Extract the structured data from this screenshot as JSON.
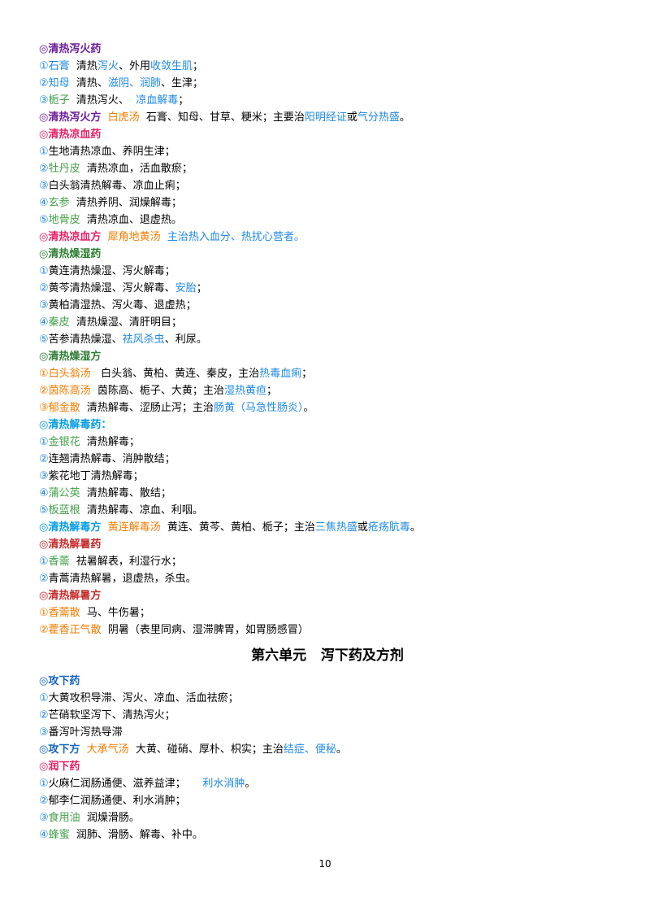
{
  "lines": [
    {
      "kind": "h",
      "segs": [
        {
          "t": "◎清热泻火药",
          "c": "#6a1b9a",
          "b": 1
        }
      ]
    },
    {
      "segs": [
        {
          "t": "①",
          "c": "#1e88e5"
        },
        {
          "t": "石膏",
          "c": "#1e88e5"
        },
        {
          "t": "  清热"
        },
        {
          "t": "泻火",
          "c": "#1e88e5"
        },
        {
          "t": "、外用"
        },
        {
          "t": "收敛生肌",
          "c": "#1e88e5"
        },
        {
          "t": "；"
        }
      ]
    },
    {
      "segs": [
        {
          "t": "②",
          "c": "#1e88e5"
        },
        {
          "t": "知母",
          "c": "#1e88e5"
        },
        {
          "t": "  清热、"
        },
        {
          "t": "滋阴、润肺",
          "c": "#1e88e5"
        },
        {
          "t": "、生津；"
        }
      ]
    },
    {
      "segs": [
        {
          "t": "③",
          "c": "#1e88e5"
        },
        {
          "t": "栀子",
          "c": "#43a047"
        },
        {
          "t": "  清热泻火、  "
        },
        {
          "t": "凉血解毒",
          "c": "#1e88e5"
        },
        {
          "t": "；"
        }
      ]
    },
    {
      "segs": [
        {
          "t": "◎清热泻火方",
          "c": "#6a1b9a",
          "b": 1
        },
        {
          "t": "  白虎汤",
          "c": "#f57c00"
        },
        {
          "t": "  石膏、知母、甘草、粳米；主要治"
        },
        {
          "t": "阳明经证",
          "c": "#1e88e5"
        },
        {
          "t": "或"
        },
        {
          "t": "气分热盛",
          "c": "#1e88e5"
        },
        {
          "t": "。"
        }
      ]
    },
    {
      "kind": "h",
      "segs": [
        {
          "t": "◎清热凉血药",
          "c": "#e91e63",
          "b": 1
        }
      ]
    },
    {
      "segs": [
        {
          "t": "①",
          "c": "#1e88e5"
        },
        {
          "t": "生地清热凉血、养阴生津；"
        }
      ]
    },
    {
      "segs": [
        {
          "t": "②",
          "c": "#1e88e5"
        },
        {
          "t": "牡丹皮",
          "c": "#43a047"
        },
        {
          "t": "  清热凉血，活血散瘀；"
        }
      ]
    },
    {
      "segs": [
        {
          "t": "③",
          "c": "#1e88e5"
        },
        {
          "t": "白头翁清热解毒、凉血止痢；"
        }
      ]
    },
    {
      "segs": [
        {
          "t": "④",
          "c": "#1e88e5"
        },
        {
          "t": "玄参",
          "c": "#43a047"
        },
        {
          "t": "  清热养阴、润燥解毒；"
        }
      ]
    },
    {
      "segs": [
        {
          "t": "⑤",
          "c": "#1e88e5"
        },
        {
          "t": "地骨皮",
          "c": "#43a047"
        },
        {
          "t": "  清热凉血、退虚热。"
        }
      ]
    },
    {
      "segs": [
        {
          "t": "◎清热凉血方",
          "c": "#e91e63",
          "b": 1
        },
        {
          "t": "  犀角地黄汤",
          "c": "#f57c00"
        },
        {
          "t": "  主治热入血分、热扰心营者。",
          "c": "#1e88e5"
        }
      ]
    },
    {
      "kind": "h",
      "segs": [
        {
          "t": "◎清热燥湿药",
          "c": "#2e7d32",
          "b": 1
        }
      ]
    },
    {
      "segs": [
        {
          "t": "①",
          "c": "#1e88e5"
        },
        {
          "t": "黄连清热燥湿、泻火解毒；"
        }
      ]
    },
    {
      "segs": [
        {
          "t": "②",
          "c": "#1e88e5"
        },
        {
          "t": "黄芩清热燥湿、泻火解毒、"
        },
        {
          "t": "安胎",
          "c": "#1e88e5"
        },
        {
          "t": "；"
        }
      ]
    },
    {
      "segs": [
        {
          "t": "③",
          "c": "#1e88e5"
        },
        {
          "t": "黄柏清湿热、泻火毒、退虚热；"
        }
      ]
    },
    {
      "segs": [
        {
          "t": "④",
          "c": "#1e88e5"
        },
        {
          "t": "秦皮",
          "c": "#43a047"
        },
        {
          "t": "  清热燥湿、清肝明目；"
        }
      ]
    },
    {
      "segs": [
        {
          "t": "⑤",
          "c": "#1e88e5"
        },
        {
          "t": "苦参清热燥湿、"
        },
        {
          "t": "祛风杀虫",
          "c": "#1e88e5"
        },
        {
          "t": "、利尿。"
        }
      ]
    },
    {
      "kind": "h",
      "segs": [
        {
          "t": "◎清热燥湿方",
          "c": "#2e7d32",
          "b": 1
        }
      ]
    },
    {
      "segs": [
        {
          "t": "①",
          "c": "#f57c00"
        },
        {
          "t": "白头翁汤",
          "c": "#f57c00"
        },
        {
          "t": "   白头翁、黄柏、黄连、秦皮，主治"
        },
        {
          "t": "热毒血痢",
          "c": "#1e88e5"
        },
        {
          "t": "；"
        }
      ]
    },
    {
      "segs": [
        {
          "t": "②",
          "c": "#f57c00"
        },
        {
          "t": "茵陈高汤",
          "c": "#f57c00"
        },
        {
          "t": "  茵陈高、栀子、大黄；主治"
        },
        {
          "t": "湿热黄疸",
          "c": "#1e88e5"
        },
        {
          "t": "；"
        }
      ]
    },
    {
      "segs": [
        {
          "t": "③",
          "c": "#f57c00"
        },
        {
          "t": "郁金散",
          "c": "#f57c00"
        },
        {
          "t": "  清热解毒、涩肠止泻；主治"
        },
        {
          "t": "肠黄（马急性肠炎）",
          "c": "#1e88e5"
        },
        {
          "t": "。"
        }
      ]
    },
    {
      "kind": "h",
      "segs": [
        {
          "t": "◎清热解毒药：",
          "c": "#039be5",
          "b": 1
        }
      ]
    },
    {
      "segs": [
        {
          "t": "①",
          "c": "#1e88e5"
        },
        {
          "t": "金银花",
          "c": "#43a047"
        },
        {
          "t": "  清热解毒；"
        }
      ]
    },
    {
      "segs": [
        {
          "t": "②",
          "c": "#1e88e5"
        },
        {
          "t": "连翘清热解毒、消肿散结；"
        }
      ]
    },
    {
      "segs": [
        {
          "t": "③",
          "c": "#1e88e5"
        },
        {
          "t": "紫花地丁清热解毒；"
        }
      ]
    },
    {
      "segs": [
        {
          "t": "④",
          "c": "#1e88e5"
        },
        {
          "t": "蒲公英",
          "c": "#43a047"
        },
        {
          "t": "  清热解毒、散结；"
        }
      ]
    },
    {
      "segs": [
        {
          "t": "⑤",
          "c": "#1e88e5"
        },
        {
          "t": "板蓝根",
          "c": "#43a047"
        },
        {
          "t": "  清热解毒、凉血、利咽。"
        }
      ]
    },
    {
      "segs": [
        {
          "t": "◎清热解毒方",
          "c": "#039be5",
          "b": 1
        },
        {
          "t": "  黄连解毒汤",
          "c": "#f57c00"
        },
        {
          "t": "  黄连、黄芩、黄柏、栀子；主治"
        },
        {
          "t": "三焦热盛",
          "c": "#1e88e5"
        },
        {
          "t": "或"
        },
        {
          "t": "疮疡肮毒",
          "c": "#1e88e5"
        },
        {
          "t": "。"
        }
      ]
    },
    {
      "kind": "h",
      "segs": [
        {
          "t": "◎清热解暑药",
          "c": "#c62828",
          "b": 1
        }
      ]
    },
    {
      "segs": [
        {
          "t": "①",
          "c": "#1e88e5"
        },
        {
          "t": "香薷",
          "c": "#43a047"
        },
        {
          "t": "  祛暑解表，利湿行水；"
        }
      ]
    },
    {
      "segs": [
        {
          "t": "②",
          "c": "#1e88e5"
        },
        {
          "t": "青蒿清热解暑，退虚热，杀虫。"
        }
      ]
    },
    {
      "kind": "h",
      "segs": [
        {
          "t": "◎清热解暑方",
          "c": "#c62828",
          "b": 1
        }
      ]
    },
    {
      "segs": [
        {
          "t": "①",
          "c": "#f57c00"
        },
        {
          "t": "香薷散",
          "c": "#f57c00"
        },
        {
          "t": "  马、牛伤暑；"
        }
      ]
    },
    {
      "segs": [
        {
          "t": "②",
          "c": "#f57c00"
        },
        {
          "t": "藿香正气散",
          "c": "#f57c00"
        },
        {
          "t": "  阴暑（表里同病、湿滞脾胃，如胃肠感冒）"
        }
      ]
    },
    {
      "kind": "chapter",
      "segs": [
        {
          "t": "第六单元   泻下药及方剂"
        }
      ]
    },
    {
      "kind": "h",
      "segs": [
        {
          "t": "◎攻下药",
          "c": "#1565c0",
          "b": 1
        }
      ]
    },
    {
      "segs": [
        {
          "t": "①",
          "c": "#1e88e5"
        },
        {
          "t": "大黄攻积导滞、泻火、凉血、活血祛瘀；"
        }
      ]
    },
    {
      "segs": [
        {
          "t": "②",
          "c": "#1e88e5"
        },
        {
          "t": "芒硝软坚泻下、清热泻火；"
        }
      ]
    },
    {
      "segs": [
        {
          "t": "③",
          "c": "#1e88e5"
        },
        {
          "t": "番泻叶泻热导滞"
        }
      ]
    },
    {
      "segs": [
        {
          "t": "◎攻下方",
          "c": "#1565c0",
          "b": 1
        },
        {
          "t": "  大承气汤",
          "c": "#f57c00"
        },
        {
          "t": "  大黄、碰硝、厚朴、枳实；主治"
        },
        {
          "t": "结症、便秘",
          "c": "#1e88e5"
        },
        {
          "t": "。"
        }
      ]
    },
    {
      "kind": "h",
      "segs": [
        {
          "t": "◎润下药",
          "c": "#e91e63",
          "b": 1
        }
      ]
    },
    {
      "segs": [
        {
          "t": "①",
          "c": "#1e88e5"
        },
        {
          "t": "火麻仁润肠通便、滋养益津；     "
        },
        {
          "t": "利水消肿",
          "c": "#1e88e5"
        },
        {
          "t": "。"
        }
      ]
    },
    {
      "segs": [
        {
          "t": "②",
          "c": "#1e88e5"
        },
        {
          "t": "郁李仁润肠通便、利水消肿；"
        }
      ]
    },
    {
      "segs": [
        {
          "t": "③",
          "c": "#1e88e5"
        },
        {
          "t": "食用油",
          "c": "#43a047"
        },
        {
          "t": "  润燥滑肠。"
        }
      ]
    },
    {
      "segs": [
        {
          "t": "④",
          "c": "#1e88e5"
        },
        {
          "t": "蜂蜜",
          "c": "#43a047"
        },
        {
          "t": "  润肺、滑肠、解毒、补中。"
        }
      ]
    }
  ],
  "page_number": "10"
}
